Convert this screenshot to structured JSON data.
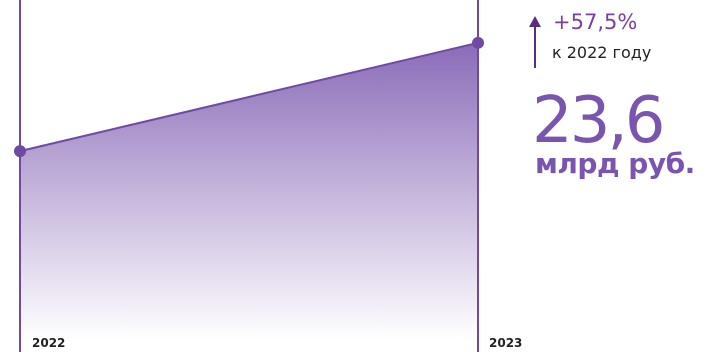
{
  "chart_data": {
    "type": "area",
    "categories": [
      "2022",
      "2023"
    ],
    "values": [
      15.0,
      23.6
    ],
    "ylim": [
      0,
      27
    ],
    "grid": false
  },
  "highlight": {
    "change": "+57,5%",
    "change_note": "к 2022 году",
    "value": "23,6",
    "unit": "млрд руб."
  },
  "colors": {
    "line": "#6f4aa3",
    "fill_top": "#8a6bb8",
    "fill_bottom": "#ffffff",
    "arrow": "#5a2d82",
    "accent": "#7a55b0"
  }
}
